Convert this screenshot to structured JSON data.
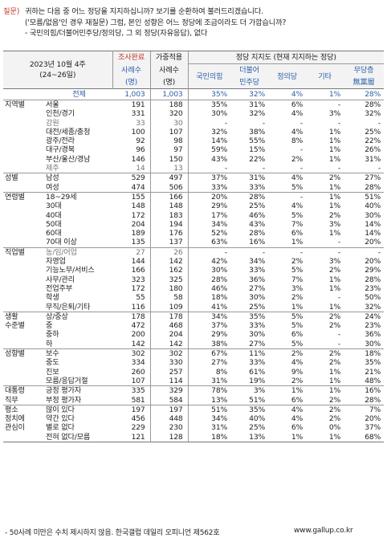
{
  "question": {
    "tag": "질문)",
    "lines": [
      "귀하는 다음 중 어느 정당을 지지하십니까? 보기를 순환하여 불러드리겠습니다.",
      "('모름/없음'인 경우 재질문) 그럼, 본인 성향은 어느 정당에 조금이라도 더 가깝습니까?",
      "- 국민의힘/더불어민주당/정의당, 그 외 정당(자유응답), 없다"
    ]
  },
  "header": {
    "date_line1": "2023년 10월 4주",
    "date_line2": "(24~26일)",
    "col_completed_line1": "조사완료",
    "col_completed_line2": "사례수",
    "col_completed_line3": "(명)",
    "col_weighted_line1": "가중적용",
    "col_weighted_line2": "사례수",
    "col_weighted_line3": "(명)",
    "support_title": "정당 지지도 (현재 지지하는 정당)",
    "col_ppp": "국민의힘",
    "col_dp_line1": "더불어",
    "col_dp_line2": "민주당",
    "col_justice": "정의당",
    "col_other": "기타",
    "col_none_line1": "무당층",
    "col_none_line2": "無黨層"
  },
  "rows": [
    {
      "group": "",
      "label": "전체",
      "n1": "1,003",
      "n2": "1,003",
      "ppp": "35%",
      "dp": "32%",
      "jp": "4%",
      "ot": "1%",
      "nn": "28%",
      "total": true,
      "gstart": false,
      "blue": true
    },
    {
      "group": "지역별",
      "label": "서울",
      "n1": "191",
      "n2": "188",
      "ppp": "35%",
      "dp": "31%",
      "jp": "6%",
      "ot": "-",
      "nn": "28%",
      "gstart": true
    },
    {
      "group": "",
      "label": "인천/경기",
      "n1": "331",
      "n2": "320",
      "ppp": "30%",
      "dp": "32%",
      "jp": "4%",
      "ot": "3%",
      "nn": "32%"
    },
    {
      "group": "",
      "label": "강원",
      "n1": "33",
      "n2": "30",
      "ppp": "-",
      "dp": "-",
      "jp": "-",
      "ot": "-",
      "nn": "-",
      "gray": true
    },
    {
      "group": "",
      "label": "대전/세종/충청",
      "n1": "100",
      "n2": "107",
      "ppp": "32%",
      "dp": "38%",
      "jp": "4%",
      "ot": "1%",
      "nn": "25%"
    },
    {
      "group": "",
      "label": "광주/전라",
      "n1": "92",
      "n2": "98",
      "ppp": "14%",
      "dp": "55%",
      "jp": "8%",
      "ot": "1%",
      "nn": "22%"
    },
    {
      "group": "",
      "label": "대구/경북",
      "n1": "96",
      "n2": "97",
      "ppp": "59%",
      "dp": "15%",
      "jp": "-",
      "ot": "1%",
      "nn": "26%"
    },
    {
      "group": "",
      "label": "부산/울산/경남",
      "n1": "146",
      "n2": "150",
      "ppp": "43%",
      "dp": "22%",
      "jp": "2%",
      "ot": "1%",
      "nn": "31%"
    },
    {
      "group": "",
      "label": "제주",
      "n1": "14",
      "n2": "13",
      "ppp": "-",
      "dp": "-",
      "jp": "-",
      "ot": "-",
      "nn": "-",
      "gray": true
    },
    {
      "group": "성별",
      "label": "남성",
      "n1": "529",
      "n2": "497",
      "ppp": "37%",
      "dp": "31%",
      "jp": "4%",
      "ot": "2%",
      "nn": "27%",
      "gstart": true
    },
    {
      "group": "",
      "label": "여성",
      "n1": "474",
      "n2": "506",
      "ppp": "33%",
      "dp": "33%",
      "jp": "5%",
      "ot": "1%",
      "nn": "28%"
    },
    {
      "group": "연령별",
      "label": "18~29세",
      "n1": "155",
      "n2": "166",
      "ppp": "20%",
      "dp": "28%",
      "jp": "-",
      "ot": "1%",
      "nn": "51%",
      "gstart": true
    },
    {
      "group": "",
      "label": "30대",
      "n1": "148",
      "n2": "148",
      "ppp": "29%",
      "dp": "25%",
      "jp": "4%",
      "ot": "1%",
      "nn": "40%"
    },
    {
      "group": "",
      "label": "40대",
      "n1": "172",
      "n2": "183",
      "ppp": "17%",
      "dp": "46%",
      "jp": "5%",
      "ot": "2%",
      "nn": "30%"
    },
    {
      "group": "",
      "label": "50대",
      "n1": "204",
      "n2": "194",
      "ppp": "34%",
      "dp": "43%",
      "jp": "7%",
      "ot": "3%",
      "nn": "14%"
    },
    {
      "group": "",
      "label": "60대",
      "n1": "189",
      "n2": "176",
      "ppp": "52%",
      "dp": "28%",
      "jp": "6%",
      "ot": "1%",
      "nn": "14%"
    },
    {
      "group": "",
      "label": "70대 이상",
      "n1": "135",
      "n2": "137",
      "ppp": "63%",
      "dp": "16%",
      "jp": "1%",
      "ot": "-",
      "nn": "20%"
    },
    {
      "group": "직업별",
      "label": "농/임/어업",
      "n1": "27",
      "n2": "26",
      "ppp": "-",
      "dp": "-",
      "jp": "-",
      "ot": "-",
      "nn": "-",
      "gstart": true,
      "gray": true
    },
    {
      "group": "",
      "label": "자영업",
      "n1": "144",
      "n2": "142",
      "ppp": "42%",
      "dp": "34%",
      "jp": "2%",
      "ot": "3%",
      "nn": "20%"
    },
    {
      "group": "",
      "label": "기능노무/서비스",
      "n1": "166",
      "n2": "162",
      "ppp": "30%",
      "dp": "33%",
      "jp": "5%",
      "ot": "2%",
      "nn": "29%"
    },
    {
      "group": "",
      "label": "사무/관리",
      "n1": "323",
      "n2": "325",
      "ppp": "28%",
      "dp": "36%",
      "jp": "7%",
      "ot": "1%",
      "nn": "28%"
    },
    {
      "group": "",
      "label": "전업주부",
      "n1": "172",
      "n2": "180",
      "ppp": "46%",
      "dp": "27%",
      "jp": "3%",
      "ot": "1%",
      "nn": "23%"
    },
    {
      "group": "",
      "label": "학생",
      "n1": "55",
      "n2": "58",
      "ppp": "18%",
      "dp": "30%",
      "jp": "2%",
      "ot": "-",
      "nn": "50%"
    },
    {
      "group": "",
      "label": "무직/은퇴/기타",
      "n1": "116",
      "n2": "109",
      "ppp": "41%",
      "dp": "25%",
      "jp": "1%",
      "ot": "1%",
      "nn": "32%"
    },
    {
      "group": "생활",
      "label": "상/중상",
      "n1": "178",
      "n2": "178",
      "ppp": "34%",
      "dp": "35%",
      "jp": "5%",
      "ot": "2%",
      "nn": "24%",
      "gstart": true
    },
    {
      "group": "수준별",
      "label": "중",
      "n1": "472",
      "n2": "468",
      "ppp": "37%",
      "dp": "33%",
      "jp": "5%",
      "ot": "2%",
      "nn": "23%"
    },
    {
      "group": "",
      "label": "중하",
      "n1": "200",
      "n2": "204",
      "ppp": "29%",
      "dp": "30%",
      "jp": "6%",
      "ot": "-",
      "nn": "36%"
    },
    {
      "group": "",
      "label": "하",
      "n1": "142",
      "n2": "142",
      "ppp": "38%",
      "dp": "27%",
      "jp": "5%",
      "ot": "-",
      "nn": "30%"
    },
    {
      "group": "성향별",
      "label": "보수",
      "n1": "302",
      "n2": "302",
      "ppp": "67%",
      "dp": "11%",
      "jp": "2%",
      "ot": "2%",
      "nn": "18%",
      "gstart": true
    },
    {
      "group": "",
      "label": "중도",
      "n1": "334",
      "n2": "330",
      "ppp": "27%",
      "dp": "33%",
      "jp": "4%",
      "ot": "2%",
      "nn": "35%"
    },
    {
      "group": "",
      "label": "진보",
      "n1": "260",
      "n2": "257",
      "ppp": "8%",
      "dp": "61%",
      "jp": "9%",
      "ot": "1%",
      "nn": "21%"
    },
    {
      "group": "",
      "label": "모름/응답거절",
      "n1": "107",
      "n2": "114",
      "ppp": "31%",
      "dp": "19%",
      "jp": "2%",
      "ot": "1%",
      "nn": "48%"
    },
    {
      "group": "대통령",
      "label": "긍정 평가자",
      "n1": "335",
      "n2": "329",
      "ppp": "78%",
      "dp": "3%",
      "jp": "1%",
      "ot": "1%",
      "nn": "16%",
      "gstart": true
    },
    {
      "group": "직무",
      "label": "부정 평가자",
      "n1": "581",
      "n2": "584",
      "ppp": "13%",
      "dp": "51%",
      "jp": "6%",
      "ot": "2%",
      "nn": "28%"
    },
    {
      "group": "평소",
      "label": "많이 있다",
      "n1": "197",
      "n2": "197",
      "ppp": "51%",
      "dp": "35%",
      "jp": "4%",
      "ot": "2%",
      "nn": "7%",
      "gstart": true
    },
    {
      "group": "정치에",
      "label": "약간 있다",
      "n1": "456",
      "n2": "448",
      "ppp": "34%",
      "dp": "40%",
      "jp": "4%",
      "ot": "2%",
      "nn": "20%"
    },
    {
      "group": "관심이",
      "label": "별로 없다",
      "n1": "229",
      "n2": "230",
      "ppp": "31%",
      "dp": "25%",
      "jp": "6%",
      "ot": "0%",
      "nn": "37%"
    },
    {
      "group": "",
      "label": "전혀 없다/모름",
      "n1": "121",
      "n2": "128",
      "ppp": "18%",
      "dp": "13%",
      "jp": "1%",
      "ot": "1%",
      "nn": "68%",
      "last": true
    }
  ],
  "footer": {
    "note": "- 50사례 미만은 수치 제시하지 않음. 한국갤럽 데일리 오피니언 제562호",
    "site": "www.gallup.co.kr"
  },
  "colors": {
    "blue": "#2b5fa8",
    "red": "#c0392b",
    "header_bg": "#f3f3f3",
    "rule": "#999999"
  }
}
